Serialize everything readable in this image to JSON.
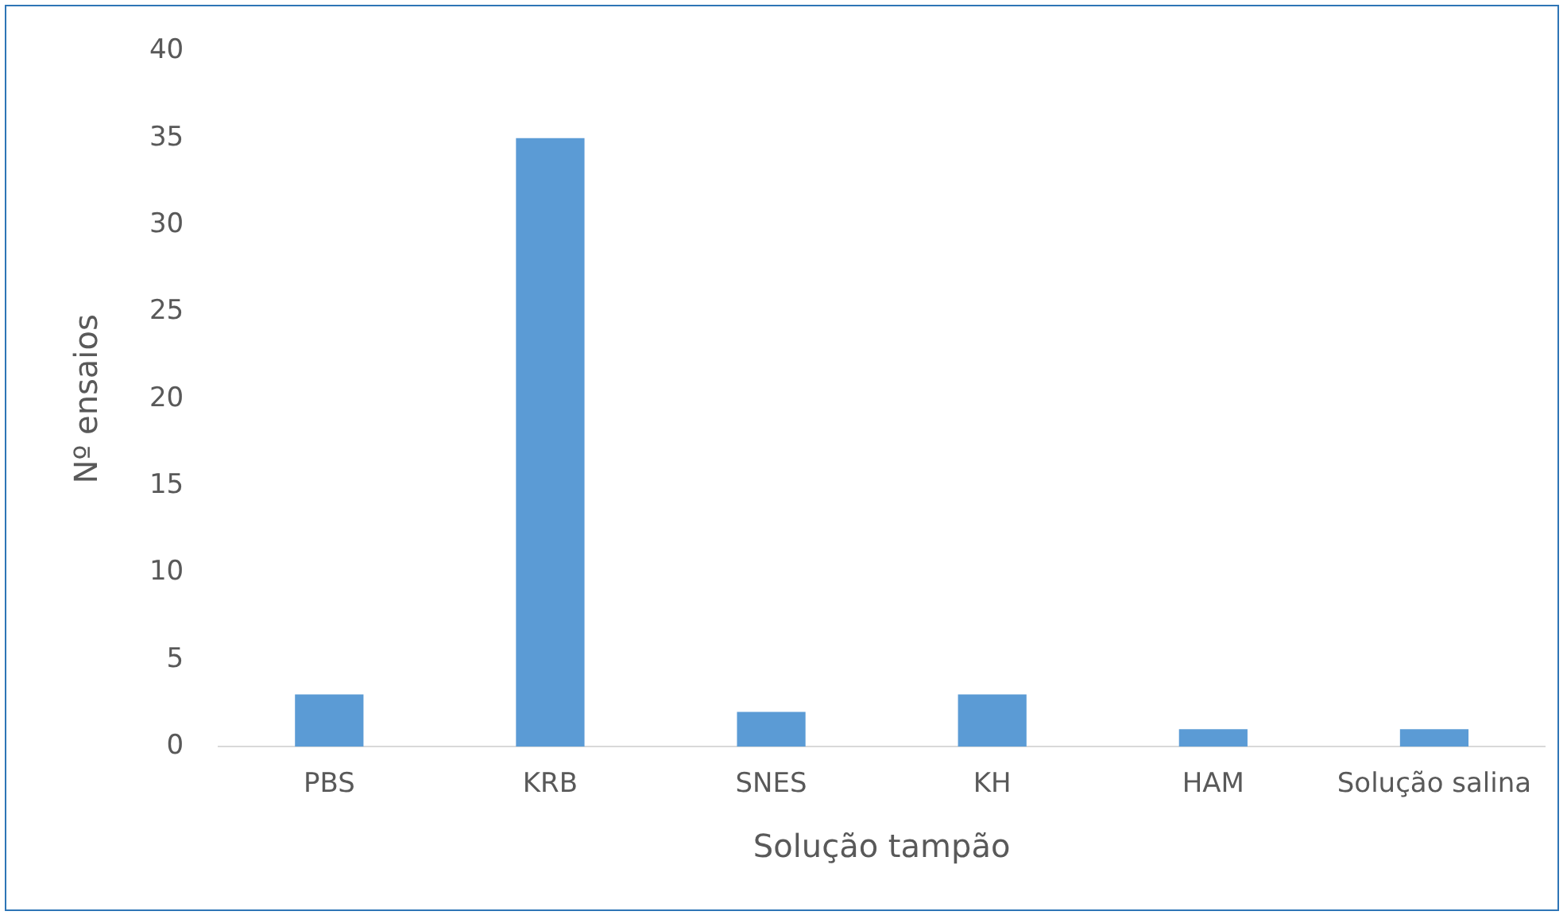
{
  "chart_data": {
    "type": "bar",
    "xlabel": "Solução tampão",
    "ylabel": "Nº ensaios",
    "categories": [
      "PBS",
      "KRB",
      "SNES",
      "KH",
      "HAM",
      "Solução salina"
    ],
    "values": [
      3,
      35,
      2,
      3,
      1,
      1
    ],
    "color": "#5b9bd5",
    "ylim": [
      0,
      40
    ],
    "yticks": [
      0,
      5,
      10,
      15,
      20,
      25,
      30,
      35,
      40
    ],
    "grid": false,
    "legend": false
  }
}
